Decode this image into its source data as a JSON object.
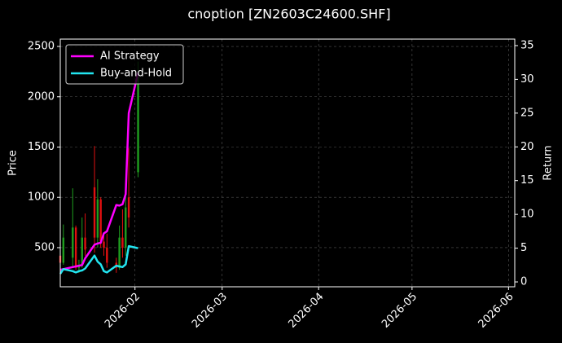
{
  "chart_data": {
    "type": "candlestick",
    "title": "cnoption [ZN2603C24600.SHF]",
    "ylabel": "Price",
    "y2label": "Return",
    "x": [
      "2026-01-08",
      "2026-01-09",
      "2026-01-12",
      "2026-01-13",
      "2026-01-14",
      "2026-01-15",
      "2026-01-16",
      "2026-01-19",
      "2026-01-20",
      "2026-01-21",
      "2026-01-22",
      "2026-01-23",
      "2026-01-26",
      "2026-01-27",
      "2026-01-28",
      "2026-01-29",
      "2026-01-30",
      "2026-02-02"
    ],
    "open": [
      420,
      350,
      400,
      700,
      300,
      330,
      600,
      1100,
      600,
      980,
      560,
      500,
      350,
      300,
      600,
      500,
      1000,
      1250
    ],
    "high": [
      620,
      730,
      1090,
      720,
      380,
      800,
      840,
      1510,
      1180,
      1000,
      620,
      640,
      400,
      720,
      880,
      1040,
      1490,
      2350
    ],
    "low": [
      300,
      330,
      300,
      280,
      250,
      300,
      420,
      450,
      500,
      500,
      420,
      300,
      250,
      280,
      400,
      420,
      700,
      1200
    ],
    "close": [
      350,
      600,
      700,
      300,
      330,
      600,
      480,
      600,
      980,
      560,
      500,
      350,
      300,
      600,
      500,
      900,
      800,
      2200
    ],
    "up_color": "#1f9e1f",
    "down_color": "#e01010",
    "series": [
      {
        "name": "AI Strategy",
        "color": "#ff00ff",
        "axis": "y2",
        "values": [
          1.8,
          1.9,
          2.2,
          2.3,
          2.4,
          2.5,
          3.5,
          5.5,
          5.7,
          5.8,
          7.2,
          7.5,
          11.4,
          11.3,
          11.5,
          13,
          25,
          31
        ]
      },
      {
        "name": "Buy-and-Hold",
        "color": "#22e5f0",
        "axis": "y2",
        "values": [
          1.2,
          1.9,
          1.6,
          1.4,
          1.6,
          1.7,
          2.0,
          3.9,
          3.0,
          2.6,
          1.6,
          1.4,
          2.4,
          2.3,
          2.2,
          2.6,
          5.3,
          5.0
        ]
      }
    ],
    "xlim": [
      "2026-01-08",
      "2026-06-03"
    ],
    "xticks": [
      {
        "value": "2026-02-01",
        "label": "2026-02"
      },
      {
        "value": "2026-03-01",
        "label": "2026-03"
      },
      {
        "value": "2026-04-01",
        "label": "2026-04"
      },
      {
        "value": "2026-05-01",
        "label": "2026-05"
      },
      {
        "value": "2026-06-01",
        "label": "2026-06"
      }
    ],
    "ylim": [
      111,
      2573
    ],
    "yticks": [
      500,
      1000,
      1500,
      2000,
      2500
    ],
    "y2lim": [
      -0.72,
      35.96
    ],
    "y2ticks": [
      0,
      5,
      10,
      15,
      20,
      25,
      30,
      35
    ],
    "grid": true,
    "legend": "upper left"
  }
}
